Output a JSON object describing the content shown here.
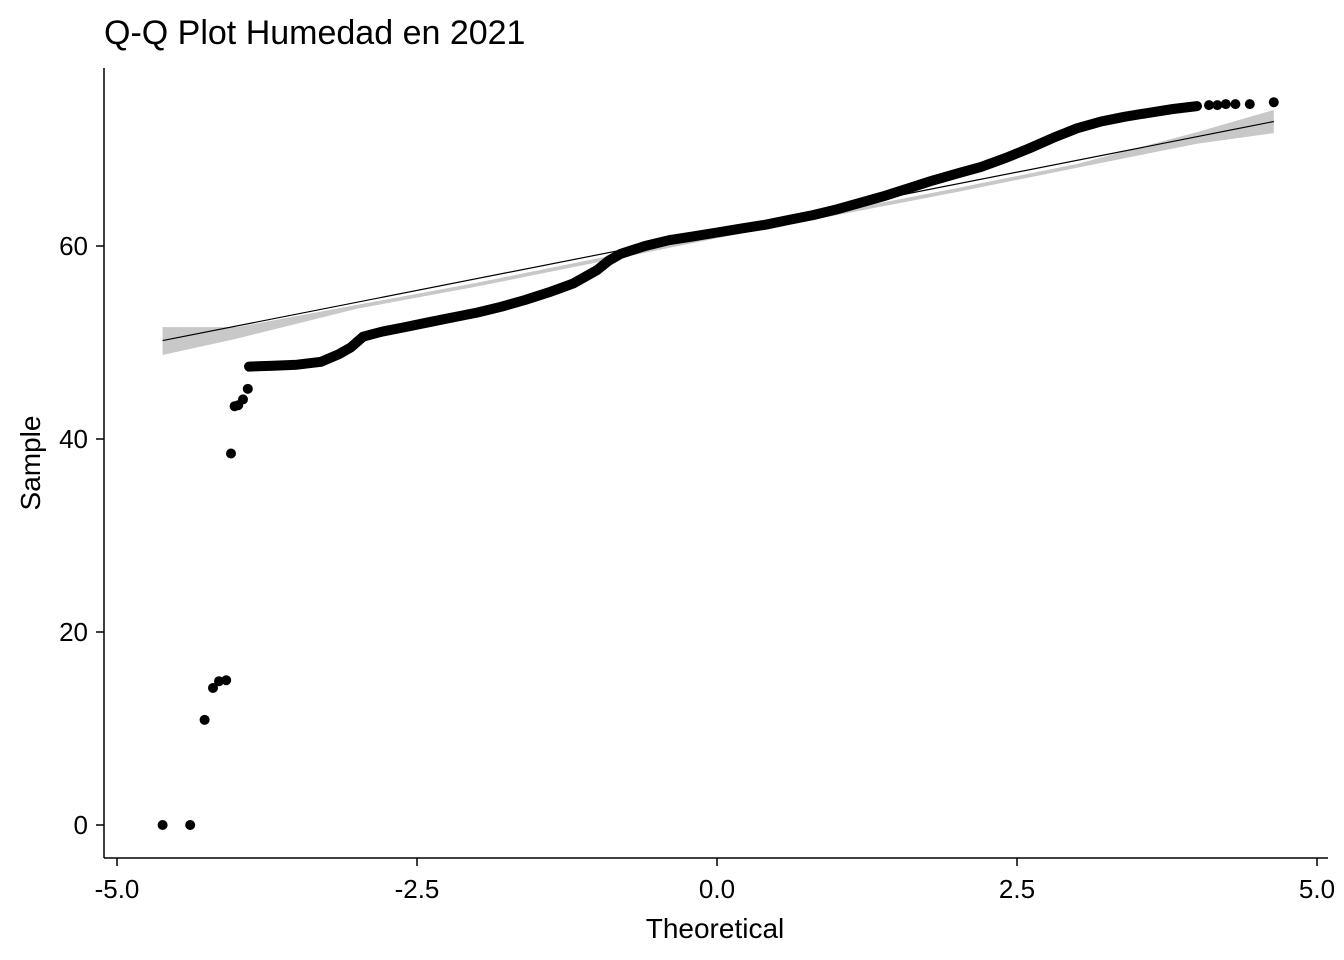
{
  "chart_data": {
    "type": "scatter",
    "title": "Q-Q Plot Humedad en 2021",
    "xlabel": "Theoretical",
    "ylabel": "Sample",
    "xlim": [
      -5.0,
      5.0
    ],
    "ylim": [
      0,
      80
    ],
    "x_ticks": [
      -5.0,
      -2.5,
      0.0,
      2.5,
      5.0
    ],
    "x_tick_labels": [
      "-5.0",
      "-2.5",
      "0.0",
      "2.5",
      "5.0"
    ],
    "y_ticks": [
      0,
      20,
      40,
      60
    ],
    "y_tick_labels": [
      "0",
      "20",
      "40",
      "60"
    ],
    "grid": false,
    "colors": {
      "points": "#000000",
      "ribbon": "#c8c8c8",
      "line": "#000000"
    },
    "outlier_points": [
      {
        "x": -4.62,
        "y": 0
      },
      {
        "x": -4.39,
        "y": 0
      },
      {
        "x": -4.27,
        "y": 10.9
      },
      {
        "x": -4.2,
        "y": 14.2
      },
      {
        "x": -4.15,
        "y": 14.9
      },
      {
        "x": -4.09,
        "y": 15.0
      },
      {
        "x": -4.05,
        "y": 38.5
      },
      {
        "x": -4.02,
        "y": 43.4
      },
      {
        "x": -3.99,
        "y": 43.5
      },
      {
        "x": -3.95,
        "y": 44.1
      },
      {
        "x": -3.91,
        "y": 45.2
      },
      {
        "x": 4.1,
        "y": 74.6
      },
      {
        "x": 4.17,
        "y": 74.6
      },
      {
        "x": 4.24,
        "y": 74.7
      },
      {
        "x": 4.32,
        "y": 74.7
      },
      {
        "x": 4.44,
        "y": 74.7
      },
      {
        "x": 4.64,
        "y": 74.9
      }
    ],
    "sample_curve": [
      [
        -3.9,
        47.5
      ],
      [
        -3.7,
        47.6
      ],
      [
        -3.5,
        47.7
      ],
      [
        -3.3,
        48.0
      ],
      [
        -3.15,
        48.8
      ],
      [
        -3.05,
        49.5
      ],
      [
        -2.95,
        50.6
      ],
      [
        -2.8,
        51.1
      ],
      [
        -2.6,
        51.6
      ],
      [
        -2.4,
        52.1
      ],
      [
        -2.2,
        52.6
      ],
      [
        -2.0,
        53.1
      ],
      [
        -1.8,
        53.7
      ],
      [
        -1.6,
        54.4
      ],
      [
        -1.4,
        55.2
      ],
      [
        -1.2,
        56.1
      ],
      [
        -1.0,
        57.5
      ],
      [
        -0.9,
        58.5
      ],
      [
        -0.8,
        59.2
      ],
      [
        -0.6,
        60.0
      ],
      [
        -0.4,
        60.6
      ],
      [
        -0.2,
        61.0
      ],
      [
        0.0,
        61.4
      ],
      [
        0.2,
        61.8
      ],
      [
        0.4,
        62.2
      ],
      [
        0.6,
        62.7
      ],
      [
        0.8,
        63.2
      ],
      [
        1.0,
        63.8
      ],
      [
        1.2,
        64.5
      ],
      [
        1.4,
        65.2
      ],
      [
        1.6,
        66.0
      ],
      [
        1.8,
        66.8
      ],
      [
        2.0,
        67.5
      ],
      [
        2.2,
        68.2
      ],
      [
        2.4,
        69.1
      ],
      [
        2.6,
        70.1
      ],
      [
        2.8,
        71.2
      ],
      [
        3.0,
        72.2
      ],
      [
        3.2,
        72.9
      ],
      [
        3.4,
        73.4
      ],
      [
        3.6,
        73.8
      ],
      [
        3.8,
        74.2
      ],
      [
        4.0,
        74.5
      ]
    ],
    "reference_line": {
      "x": [
        -4.62,
        4.64
      ],
      "y": [
        50.2,
        72.9
      ]
    },
    "confidence_band": {
      "x": [
        -4.62,
        -4.0,
        -3.0,
        -2.0,
        -1.0,
        0.0,
        1.0,
        2.0,
        3.0,
        4.0,
        4.64
      ],
      "lower": [
        48.7,
        50.4,
        53.5,
        55.8,
        58.3,
        60.8,
        63.2,
        65.6,
        68.1,
        70.6,
        71.7
      ],
      "upper": [
        51.6,
        51.6,
        53.9,
        56.2,
        58.7,
        61.2,
        63.6,
        66.0,
        68.5,
        71.8,
        74.1
      ]
    }
  }
}
